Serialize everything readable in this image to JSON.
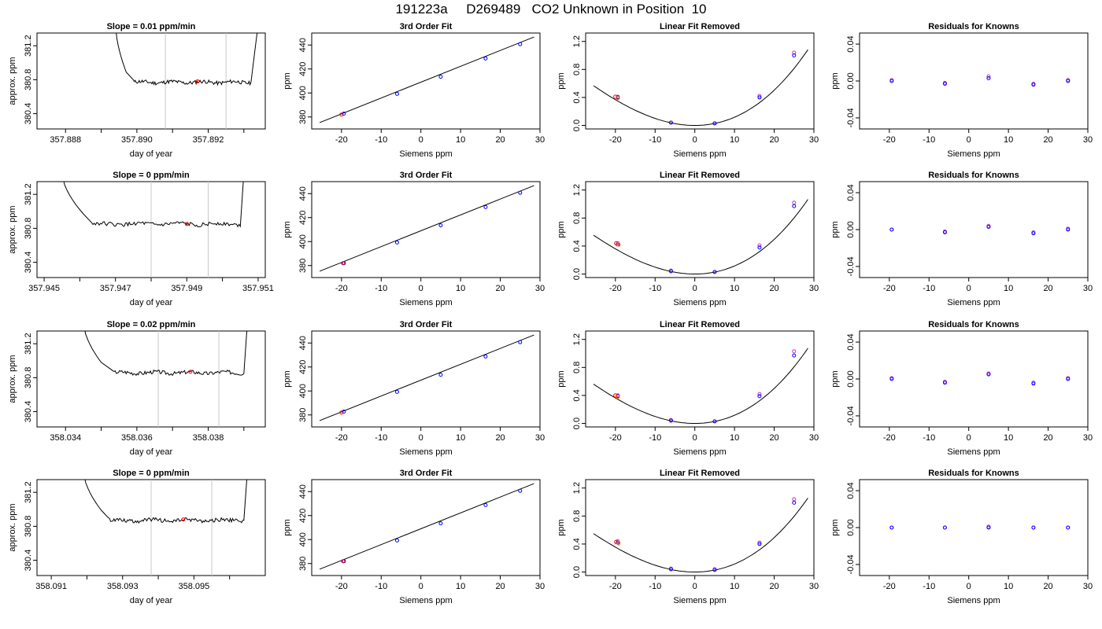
{
  "title": "191223a     D269489   CO2 Unknown in Position  10",
  "colors": {
    "line": "#000000",
    "gray_marker": "#c8c8c8",
    "unknown_point": "#ff0000",
    "known_point": "#0000ff",
    "alt_point": "#cc33cc"
  },
  "chart_data": [
    {
      "type": "line",
      "panel": "trace",
      "row": 1,
      "title": "Slope =  0.01  ppm/min",
      "xlabel": "day of year",
      "ylabel": "approx. ppm",
      "xlim": [
        357.8872,
        357.8936
      ],
      "ylim": [
        380.22,
        381.35
      ],
      "xticks": [
        357.888,
        357.89,
        357.892
      ],
      "xtick_labels": [
        "357.888",
        "357.890",
        "357.892"
      ],
      "xminor": [
        357.889,
        357.891,
        357.893
      ],
      "yticks": [
        380.4,
        380.8,
        381.2
      ],
      "ytick_labels": [
        "380.4",
        "380.8",
        "381.2"
      ],
      "markers": [
        357.8908,
        357.8925
      ],
      "trace": {
        "x0": 357.8894,
        "drop_end": 357.8897,
        "flat_start": 357.8899,
        "flat_end": 357.8932,
        "x1": 357.8934,
        "level": 380.77
      },
      "point": [
        357.8917,
        380.78
      ]
    },
    {
      "type": "line",
      "panel": "fit",
      "row": 1,
      "title": "3rd Order Fit",
      "xlabel": "Siemens ppm",
      "ylabel": "ppm",
      "xlim": [
        -27.5,
        30
      ],
      "ylim": [
        370,
        450
      ],
      "xticks": [
        -20,
        -10,
        0,
        10,
        20,
        30
      ],
      "xtick_labels": [
        "-20",
        "-10",
        "0",
        "10",
        "20",
        "30"
      ],
      "yticks": [
        380,
        400,
        420,
        440
      ],
      "ytick_labels": [
        "380",
        "400",
        "420",
        "440"
      ],
      "line": {
        "x": [
          -25.5,
          28.5
        ],
        "y": [
          375.3,
          446.7
        ]
      },
      "known_x": [
        -19.4,
        -6,
        5,
        16.3,
        25
      ],
      "known_y": [
        382.8,
        399.3,
        413.5,
        428.8,
        440.7
      ],
      "unknown": [
        -20.0,
        382.0
      ]
    },
    {
      "type": "line",
      "panel": "linear",
      "row": 1,
      "title": "Linear Fit Removed",
      "xlabel": "Siemens ppm",
      "ylabel": "ppm",
      "xlim": [
        -27.5,
        30
      ],
      "ylim": [
        -0.05,
        1.32
      ],
      "xticks": [
        -20,
        -10,
        0,
        10,
        20,
        30
      ],
      "xtick_labels": [
        "-20",
        "-10",
        "0",
        "10",
        "20",
        "30"
      ],
      "yticks": [
        0.0,
        0.4,
        0.8,
        1.2
      ],
      "ytick_labels": [
        "0.0",
        "0.4",
        "0.8",
        "1.2"
      ],
      "curve": {
        "x_from": -25.5,
        "x_to": 28.5,
        "a": 0.00109,
        "b": 0.0,
        "c": 0.0,
        "d": 8.5e-06
      },
      "known_x": [
        -19.4,
        -6,
        5,
        16.3,
        25
      ],
      "known_y": [
        0.4,
        0.04,
        0.03,
        0.4,
        1.0
      ],
      "alt_y": [
        0.41,
        0.04,
        0.03,
        0.42,
        1.04
      ],
      "unknown": [
        -20.0,
        0.41
      ]
    },
    {
      "type": "scatter",
      "panel": "residuals",
      "row": 1,
      "title": "Residuals for Knowns",
      "xlabel": "Siemens ppm",
      "ylabel": "ppm",
      "xlim": [
        -27.5,
        30
      ],
      "ylim": [
        -0.052,
        0.052
      ],
      "xticks": [
        -20,
        -10,
        0,
        10,
        20,
        30
      ],
      "xtick_labels": [
        "-20",
        "-10",
        "0",
        "10",
        "20",
        "30"
      ],
      "yticks": [
        -0.04,
        0.0,
        0.04
      ],
      "ytick_labels": [
        "-0.04",
        "0.00",
        "0.04"
      ],
      "known_x": [
        -19.4,
        -6,
        5,
        16.3,
        25
      ],
      "known_y": [
        0.0,
        -0.003,
        0.003,
        -0.004,
        0.0
      ],
      "alt_y": [
        0.001,
        -0.002,
        0.005,
        -0.003,
        0.001
      ]
    },
    {
      "type": "line",
      "panel": "trace",
      "row": 2,
      "title": "Slope =  0  ppm/min",
      "xlabel": "day of year",
      "ylabel": "approx. ppm",
      "xlim": [
        357.9448,
        357.9512
      ],
      "ylim": [
        380.22,
        381.35
      ],
      "xticks": [
        357.945,
        357.947,
        357.949,
        357.951
      ],
      "xtick_labels": [
        "357.945",
        "357.947",
        "357.949",
        "357.951"
      ],
      "xminor": [
        357.946,
        357.948,
        357.95
      ],
      "yticks": [
        380.4,
        380.8,
        381.2
      ],
      "ytick_labels": [
        "380.4",
        "380.8",
        "381.2"
      ],
      "markers": [
        357.948,
        357.9496
      ],
      "trace": {
        "x0": 357.9455,
        "drop_end": 357.9461,
        "flat_start": 357.9463,
        "flat_end": 357.9505,
        "x1": 357.9506,
        "level": 380.85
      },
      "point": [
        357.949,
        380.85
      ]
    },
    {
      "type": "line",
      "panel": "fit",
      "row": 2,
      "title": "3rd Order Fit",
      "xlabel": "Siemens ppm",
      "ylabel": "ppm",
      "xlim": [
        -27.5,
        30
      ],
      "ylim": [
        370,
        450
      ],
      "xticks": [
        -20,
        -10,
        0,
        10,
        20,
        30
      ],
      "xtick_labels": [
        "-20",
        "-10",
        "0",
        "10",
        "20",
        "30"
      ],
      "yticks": [
        380,
        400,
        420,
        440
      ],
      "ytick_labels": [
        "380",
        "400",
        "420",
        "440"
      ],
      "line": {
        "x": [
          -25.5,
          28.5
        ],
        "y": [
          375.3,
          446.7
        ]
      },
      "known_x": [
        -19.4,
        -6,
        5,
        16.3,
        25
      ],
      "known_y": [
        382.0,
        399.3,
        413.5,
        428.8,
        440.7
      ],
      "unknown": [
        -19.6,
        382.0
      ]
    },
    {
      "type": "line",
      "panel": "linear",
      "row": 2,
      "title": "Linear Fit Removed",
      "xlabel": "Siemens ppm",
      "ylabel": "ppm",
      "xlim": [
        -27.5,
        30
      ],
      "ylim": [
        -0.05,
        1.32
      ],
      "xticks": [
        -20,
        -10,
        0,
        10,
        20,
        30
      ],
      "xtick_labels": [
        "-20",
        "-10",
        "0",
        "10",
        "20",
        "30"
      ],
      "yticks": [
        0.0,
        0.4,
        0.8,
        1.2
      ],
      "ytick_labels": [
        "0.0",
        "0.4",
        "0.8",
        "1.2"
      ],
      "curve": {
        "x_from": -25.5,
        "x_to": 28.5,
        "a": 0.00107,
        "b": 0.0,
        "c": 0.0,
        "d": 8.5e-06
      },
      "known_x": [
        -19.4,
        -6,
        5,
        16.3,
        25
      ],
      "known_y": [
        0.42,
        0.04,
        0.03,
        0.38,
        0.97
      ],
      "alt_y": [
        0.44,
        0.05,
        0.03,
        0.41,
        1.02
      ],
      "unknown": [
        -19.8,
        0.44
      ]
    },
    {
      "type": "scatter",
      "panel": "residuals",
      "row": 2,
      "title": "Residuals for Knowns",
      "xlabel": "Siemens ppm",
      "ylabel": "ppm",
      "xlim": [
        -27.5,
        30
      ],
      "ylim": [
        -0.052,
        0.052
      ],
      "xticks": [
        -20,
        -10,
        0,
        10,
        20,
        30
      ],
      "xtick_labels": [
        "-20",
        "-10",
        "0",
        "10",
        "20",
        "30"
      ],
      "yticks": [
        -0.04,
        0.0,
        0.04
      ],
      "ytick_labels": [
        "-0.04",
        "0.00",
        "0.04"
      ],
      "known_x": [
        -19.4,
        -6,
        5,
        16.3,
        25
      ],
      "known_y": [
        0.0,
        -0.003,
        0.003,
        -0.004,
        0.0
      ],
      "alt_y": [
        0.0,
        -0.002,
        0.004,
        -0.003,
        0.001
      ]
    },
    {
      "type": "line",
      "panel": "trace",
      "row": 3,
      "title": "Slope =  0.02  ppm/min",
      "xlabel": "day of year",
      "ylabel": "approx. ppm",
      "xlim": [
        358.0332,
        358.0396
      ],
      "ylim": [
        380.22,
        381.35
      ],
      "xticks": [
        358.034,
        358.036,
        358.038
      ],
      "xtick_labels": [
        "358.034",
        "358.036",
        "358.038"
      ],
      "xminor": [
        358.035,
        358.037,
        358.039
      ],
      "yticks": [
        380.4,
        380.8,
        381.2
      ],
      "ytick_labels": [
        "380.4",
        "380.8",
        "381.2"
      ],
      "markers": [
        358.0366,
        358.0383
      ],
      "trace": {
        "x0": 358.0345,
        "drop_end": 358.035,
        "flat_start": 358.0353,
        "flat_end": 358.039,
        "x1": 358.0391,
        "level": 380.86
      },
      "point": [
        358.0375,
        380.87
      ]
    },
    {
      "type": "line",
      "panel": "fit",
      "row": 3,
      "title": "3rd Order Fit",
      "xlabel": "Siemens ppm",
      "ylabel": "ppm",
      "xlim": [
        -27.5,
        30
      ],
      "ylim": [
        370,
        450
      ],
      "xticks": [
        -20,
        -10,
        0,
        10,
        20,
        30
      ],
      "xtick_labels": [
        "-20",
        "-10",
        "0",
        "10",
        "20",
        "30"
      ],
      "yticks": [
        380,
        400,
        420,
        440
      ],
      "ytick_labels": [
        "380",
        "400",
        "420",
        "440"
      ],
      "line": {
        "x": [
          -25.5,
          28.5
        ],
        "y": [
          375.3,
          446.7
        ]
      },
      "known_x": [
        -19.4,
        -6,
        5,
        16.3,
        25
      ],
      "known_y": [
        382.8,
        399.3,
        413.5,
        428.8,
        440.7
      ],
      "unknown": [
        -20.0,
        382.0
      ]
    },
    {
      "type": "line",
      "panel": "linear",
      "row": 3,
      "title": "Linear Fit Removed",
      "xlabel": "Siemens ppm",
      "ylabel": "ppm",
      "xlim": [
        -27.5,
        30
      ],
      "ylim": [
        -0.05,
        1.32
      ],
      "xticks": [
        -20,
        -10,
        0,
        10,
        20,
        30
      ],
      "xtick_labels": [
        "-20",
        "-10",
        "0",
        "10",
        "20",
        "30"
      ],
      "yticks": [
        0.0,
        0.4,
        0.8,
        1.2
      ],
      "ytick_labels": [
        "0.0",
        "0.4",
        "0.8",
        "1.2"
      ],
      "curve": {
        "x_from": -25.5,
        "x_to": 28.5,
        "a": 0.00108,
        "b": 0.0,
        "c": 0.0,
        "d": 8.5e-06
      },
      "known_x": [
        -19.4,
        -6,
        5,
        16.3,
        25
      ],
      "known_y": [
        0.39,
        0.04,
        0.03,
        0.39,
        0.97
      ],
      "alt_y": [
        0.4,
        0.05,
        0.03,
        0.42,
        1.03
      ],
      "unknown": [
        -20.0,
        0.4
      ]
    },
    {
      "type": "scatter",
      "panel": "residuals",
      "row": 3,
      "title": "Residuals for Knowns",
      "xlabel": "Siemens ppm",
      "ylabel": "ppm",
      "xlim": [
        -27.5,
        30
      ],
      "ylim": [
        -0.052,
        0.052
      ],
      "xticks": [
        -20,
        -10,
        0,
        10,
        20,
        30
      ],
      "xtick_labels": [
        "-20",
        "-10",
        "0",
        "10",
        "20",
        "30"
      ],
      "yticks": [
        -0.04,
        0.0,
        0.04
      ],
      "ytick_labels": [
        "-0.04",
        "0.00",
        "0.04"
      ],
      "known_x": [
        -19.4,
        -6,
        5,
        16.3,
        25
      ],
      "known_y": [
        0.0,
        -0.004,
        0.005,
        -0.005,
        0.0
      ],
      "alt_y": [
        0.001,
        -0.003,
        0.006,
        -0.004,
        0.001
      ]
    },
    {
      "type": "line",
      "panel": "trace",
      "row": 4,
      "title": "Slope =  0  ppm/min",
      "xlabel": "day of year",
      "ylabel": "approx. ppm",
      "xlim": [
        358.0906,
        358.097
      ],
      "ylim": [
        380.22,
        381.35
      ],
      "xticks": [
        358.091,
        358.093,
        358.095
      ],
      "xtick_labels": [
        "358.091",
        "358.093",
        "358.095"
      ],
      "xminor": [
        358.092,
        358.094,
        358.096
      ],
      "yticks": [
        380.4,
        380.8,
        381.2
      ],
      "ytick_labels": [
        "380.4",
        "380.8",
        "381.2"
      ],
      "markers": [
        358.0938,
        358.0955
      ],
      "trace": {
        "x0": 358.0919,
        "drop_end": 358.0924,
        "flat_start": 358.0926,
        "flat_end": 358.0964,
        "x1": 358.0965,
        "level": 380.87
      },
      "point": [
        358.0947,
        380.88
      ]
    },
    {
      "type": "line",
      "panel": "fit",
      "row": 4,
      "title": "3rd Order Fit",
      "xlabel": "Siemens ppm",
      "ylabel": "ppm",
      "xlim": [
        -27.5,
        30
      ],
      "ylim": [
        370,
        450
      ],
      "xticks": [
        -20,
        -10,
        0,
        10,
        20,
        30
      ],
      "xtick_labels": [
        "-20",
        "-10",
        "0",
        "10",
        "20",
        "30"
      ],
      "yticks": [
        380,
        400,
        420,
        440
      ],
      "ytick_labels": [
        "380",
        "400",
        "420",
        "440"
      ],
      "line": {
        "x": [
          -25.5,
          28.5
        ],
        "y": [
          375.3,
          446.7
        ]
      },
      "known_x": [
        -19.4,
        -6,
        5,
        16.3,
        25
      ],
      "known_y": [
        382.0,
        399.3,
        413.5,
        428.8,
        440.7
      ],
      "unknown": [
        -19.6,
        382.0
      ]
    },
    {
      "type": "line",
      "panel": "linear",
      "row": 4,
      "title": "Linear Fit Removed",
      "xlabel": "Siemens ppm",
      "ylabel": "ppm",
      "xlim": [
        -27.5,
        30
      ],
      "ylim": [
        -0.05,
        1.32
      ],
      "xticks": [
        -20,
        -10,
        0,
        10,
        20,
        30
      ],
      "xtick_labels": [
        "-20",
        "-10",
        "0",
        "10",
        "20",
        "30"
      ],
      "yticks": [
        0.0,
        0.4,
        0.8,
        1.2
      ],
      "ytick_labels": [
        "0.0",
        "0.4",
        "0.8",
        "1.2"
      ],
      "curve": {
        "x_from": -25.5,
        "x_to": 28.5,
        "a": 0.00106,
        "b": 0.0,
        "c": 0.0,
        "d": 8.5e-06
      },
      "known_x": [
        -19.4,
        -6,
        5,
        16.3,
        25
      ],
      "known_y": [
        0.42,
        0.04,
        0.03,
        0.4,
        0.99
      ],
      "alt_y": [
        0.44,
        0.05,
        0.04,
        0.42,
        1.04
      ],
      "unknown": [
        -19.8,
        0.43
      ]
    },
    {
      "type": "scatter",
      "panel": "residuals",
      "row": 4,
      "title": "Residuals for Knowns",
      "xlabel": "Siemens ppm",
      "ylabel": "ppm",
      "xlim": [
        -27.5,
        30
      ],
      "ylim": [
        -0.052,
        0.052
      ],
      "xticks": [
        -20,
        -10,
        0,
        10,
        20,
        30
      ],
      "xtick_labels": [
        "-20",
        "-10",
        "0",
        "10",
        "20",
        "30"
      ],
      "yticks": [
        -0.04,
        0.0,
        0.04
      ],
      "ytick_labels": [
        "-0.04",
        "0.00",
        "0.04"
      ],
      "known_x": [
        -19.4,
        -6,
        5,
        16.3,
        25
      ],
      "known_y": [
        0.0,
        0.0,
        0.0,
        0.0,
        0.0
      ],
      "alt_y": [
        0.0,
        0.0,
        0.001,
        0.0,
        0.0
      ]
    }
  ]
}
